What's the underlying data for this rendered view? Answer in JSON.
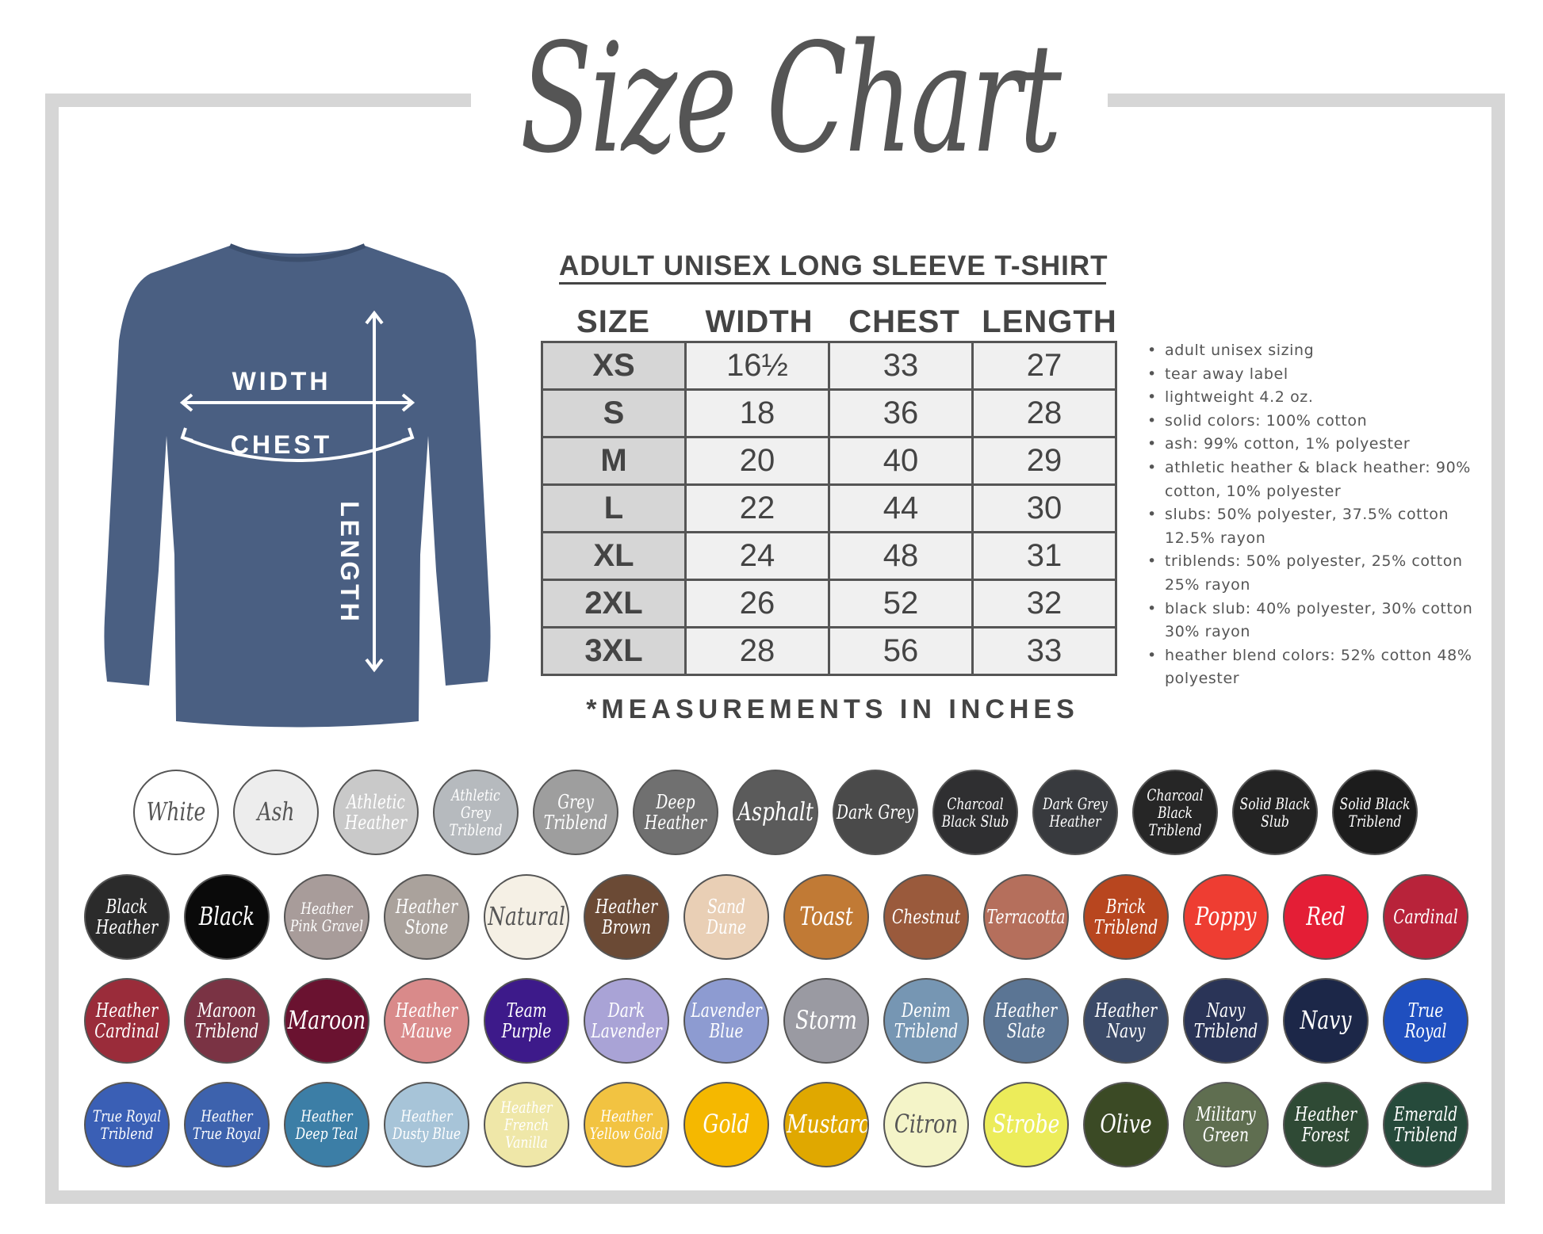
{
  "title": "Size Chart",
  "product": "ADULT UNISEX LONG SLEEVE T-SHIRT",
  "shirt_color": "#4a5f82",
  "diagram_labels": {
    "width": "WIDTH",
    "chest": "CHEST",
    "length": "LENGTH"
  },
  "table": {
    "headers": [
      "SIZE",
      "WIDTH",
      "CHEST",
      "LENGTH"
    ],
    "rows": [
      [
        "XS",
        "16½",
        "33",
        "27"
      ],
      [
        "S",
        "18",
        "36",
        "28"
      ],
      [
        "M",
        "20",
        "40",
        "29"
      ],
      [
        "L",
        "22",
        "44",
        "30"
      ],
      [
        "XL",
        "24",
        "48",
        "31"
      ],
      [
        "2XL",
        "26",
        "52",
        "32"
      ],
      [
        "3XL",
        "28",
        "56",
        "33"
      ]
    ]
  },
  "footnote": "*MEASUREMENTS IN INCHES",
  "notes": [
    "adult unisex sizing",
    "tear away label",
    "lightweight 4.2 oz.",
    "solid colors: 100% cotton",
    "ash: 99% cotton, 1% polyester",
    "athletic heather & black heather: 90% cotton, 10% polyester",
    "slubs: 50% polyester, 37.5% cotton 12.5% rayon",
    "triblends: 50% polyester, 25% cotton 25% rayon",
    "black slub: 40% polyester, 30% cotton 30% rayon",
    "heather blend colors: 52% cotton 48% polyester"
  ],
  "swatch_rows": [
    [
      {
        "label": "White",
        "color": "#ffffff",
        "text": "#555555"
      },
      {
        "label": "Ash",
        "color": "#ededed",
        "text": "#555555"
      },
      {
        "label": "Athletic Heather",
        "color": "#c9c9c9",
        "text": "#ffffff"
      },
      {
        "label": "Athletic Grey Triblend",
        "color": "#b6babe",
        "text": "#ffffff"
      },
      {
        "label": "Grey Triblend",
        "color": "#9e9e9e",
        "text": "#ffffff"
      },
      {
        "label": "Deep Heather",
        "color": "#707070",
        "text": "#ffffff"
      },
      {
        "label": "Asphalt",
        "color": "#5b5b5b",
        "text": "#ffffff"
      },
      {
        "label": "Dark Grey",
        "color": "#4a4a4a",
        "text": "#ffffff"
      },
      {
        "label": "Charcoal Black Slub",
        "color": "#2f2f31",
        "text": "#ffffff"
      },
      {
        "label": "Dark Grey Heather",
        "color": "#383a3e",
        "text": "#ffffff"
      },
      {
        "label": "Charcoal Black Triblend",
        "color": "#262626",
        "text": "#ffffff"
      },
      {
        "label": "Solid Black Slub",
        "color": "#232323",
        "text": "#ffffff"
      },
      {
        "label": "Solid Black Triblend",
        "color": "#1c1c1c",
        "text": "#ffffff"
      }
    ],
    [
      {
        "label": "Black Heather",
        "color": "#2b2b2b",
        "text": "#ffffff"
      },
      {
        "label": "Black",
        "color": "#0a0a0a",
        "text": "#ffffff"
      },
      {
        "label": "Heather Pink Gravel",
        "color": "#a89c9a",
        "text": "#ffffff"
      },
      {
        "label": "Heather Stone",
        "color": "#aaa29c",
        "text": "#ffffff"
      },
      {
        "label": "Natural",
        "color": "#f5f0e5",
        "text": "#555555"
      },
      {
        "label": "Heather Brown",
        "color": "#6b4a35",
        "text": "#ffffff"
      },
      {
        "label": "Sand Dune",
        "color": "#e9cfb5",
        "text": "#ffffff"
      },
      {
        "label": "Toast",
        "color": "#c17a35",
        "text": "#ffffff"
      },
      {
        "label": "Chestnut",
        "color": "#9a5a3c",
        "text": "#ffffff"
      },
      {
        "label": "Terracotta",
        "color": "#b56f5c",
        "text": "#ffffff"
      },
      {
        "label": "Brick Triblend",
        "color": "#b8461f",
        "text": "#ffffff"
      },
      {
        "label": "Poppy",
        "color": "#ee3d32",
        "text": "#ffffff"
      },
      {
        "label": "Red",
        "color": "#e41e36",
        "text": "#ffffff"
      },
      {
        "label": "Cardinal",
        "color": "#b8233a",
        "text": "#ffffff"
      }
    ],
    [
      {
        "label": "Heather Cardinal",
        "color": "#9a2c3a",
        "text": "#ffffff"
      },
      {
        "label": "Maroon Triblend",
        "color": "#7a3344",
        "text": "#ffffff"
      },
      {
        "label": "Maroon",
        "color": "#6a1230",
        "text": "#ffffff"
      },
      {
        "label": "Heather Mauve",
        "color": "#d98a8a",
        "text": "#ffffff"
      },
      {
        "label": "Team Purple",
        "color": "#3d1a8a",
        "text": "#ffffff"
      },
      {
        "label": "Dark Lavender",
        "color": "#a9a3d6",
        "text": "#ffffff"
      },
      {
        "label": "Lavender Blue",
        "color": "#8d9bd1",
        "text": "#ffffff"
      },
      {
        "label": "Storm",
        "color": "#9a9aa2",
        "text": "#ffffff"
      },
      {
        "label": "Denim Triblend",
        "color": "#7696b3",
        "text": "#ffffff"
      },
      {
        "label": "Heather Slate",
        "color": "#5b7594",
        "text": "#ffffff"
      },
      {
        "label": "Heather Navy",
        "color": "#3b4a68",
        "text": "#ffffff"
      },
      {
        "label": "Navy Triblend",
        "color": "#2a3457",
        "text": "#ffffff"
      },
      {
        "label": "Navy",
        "color": "#1c2748",
        "text": "#ffffff"
      },
      {
        "label": "True Royal",
        "color": "#1f4fbf",
        "text": "#ffffff"
      }
    ],
    [
      {
        "label": "True Royal Triblend",
        "color": "#3a5fb5",
        "text": "#ffffff"
      },
      {
        "label": "Heather True Royal",
        "color": "#3d62ad",
        "text": "#ffffff"
      },
      {
        "label": "Heather Deep Teal",
        "color": "#3c7ea6",
        "text": "#ffffff"
      },
      {
        "label": "Heather Dusty Blue",
        "color": "#a7c4d8",
        "text": "#ffffff"
      },
      {
        "label": "Heather French Vanilla",
        "color": "#efe7a8",
        "text": "#ffffff"
      },
      {
        "label": "Heather Yellow Gold",
        "color": "#f2c341",
        "text": "#ffffff"
      },
      {
        "label": "Gold",
        "color": "#f5b800",
        "text": "#ffffff"
      },
      {
        "label": "Mustard",
        "color": "#e0a800",
        "text": "#ffffff"
      },
      {
        "label": "Citron",
        "color": "#f4f4c8",
        "text": "#555555"
      },
      {
        "label": "Strobe",
        "color": "#ecec5a",
        "text": "#ffffff"
      },
      {
        "label": "Olive",
        "color": "#3b4a25",
        "text": "#ffffff"
      },
      {
        "label": "Military Green",
        "color": "#5f6e50",
        "text": "#ffffff"
      },
      {
        "label": "Heather Forest",
        "color": "#2f4a35",
        "text": "#ffffff"
      },
      {
        "label": "Emerald Triblend",
        "color": "#264a3b",
        "text": "#ffffff"
      }
    ]
  ]
}
